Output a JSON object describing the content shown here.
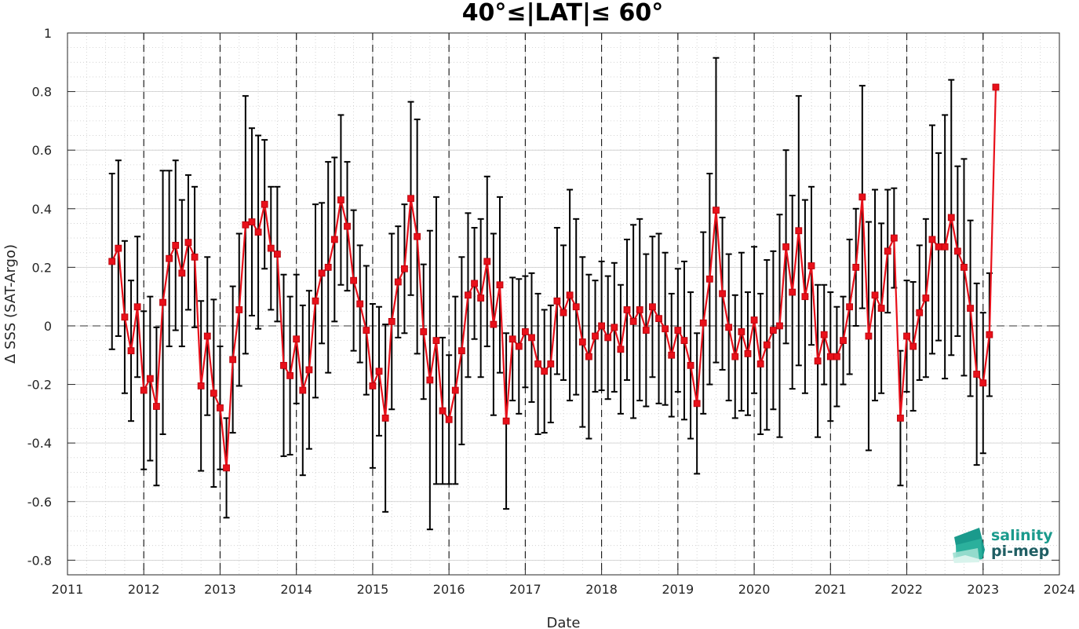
{
  "chart_data": {
    "type": "line",
    "title": "40°≤|LAT|≤ 60°",
    "xlabel": "Date",
    "ylabel": "Δ SSS (SAT-Argo)",
    "xlim": [
      2011,
      2024
    ],
    "ylim": [
      -0.85,
      1.0
    ],
    "x_ticks": [
      "2011",
      "2012",
      "2013",
      "2014",
      "2015",
      "2016",
      "2017",
      "2018",
      "2019",
      "2020",
      "2021",
      "2022",
      "2023",
      "2024"
    ],
    "y_ticks": [
      "1",
      "0.8",
      "0.6",
      "0.4",
      "0.2",
      "0",
      "-0.2",
      "-0.4",
      "-0.6",
      "-0.8"
    ],
    "grid": true,
    "minor_grid": true,
    "reference_line_y": 0,
    "year_separators": true,
    "colors": {
      "series": "#e8101a",
      "errorbar": "#000000",
      "grid": "#cccccc",
      "logo_top": "#1a9a8c",
      "logo_bottom": "#1f5e63"
    },
    "series": [
      {
        "x": [
          "2011-08",
          "2011-09",
          "2011-10",
          "2011-11",
          "2011-12",
          "2012-01",
          "2012-02",
          "2012-03",
          "2012-04",
          "2012-05",
          "2012-06",
          "2012-07",
          "2012-08",
          "2012-09",
          "2012-10",
          "2012-11",
          "2012-12",
          "2013-01",
          "2013-02",
          "2013-03",
          "2013-04",
          "2013-05",
          "2013-06",
          "2013-07",
          "2013-08",
          "2013-09",
          "2013-10",
          "2013-11",
          "2013-12",
          "2014-01",
          "2014-02",
          "2014-03",
          "2014-04",
          "2014-05",
          "2014-06",
          "2014-07",
          "2014-08",
          "2014-09",
          "2014-10",
          "2014-11",
          "2014-12",
          "2015-01",
          "2015-02",
          "2015-03",
          "2015-04",
          "2015-05",
          "2015-06",
          "2015-07",
          "2015-08",
          "2015-09",
          "2015-10",
          "2015-11",
          "2015-12",
          "2016-01",
          "2016-02",
          "2016-03",
          "2016-04",
          "2016-05",
          "2016-06",
          "2016-07",
          "2016-08",
          "2016-09",
          "2016-10",
          "2016-11",
          "2016-12",
          "2017-01",
          "2017-02",
          "2017-03",
          "2017-04",
          "2017-05",
          "2017-06",
          "2017-07",
          "2017-08",
          "2017-09",
          "2017-10",
          "2017-11",
          "2017-12",
          "2018-01",
          "2018-02",
          "2018-03",
          "2018-04",
          "2018-05",
          "2018-06",
          "2018-07",
          "2018-08",
          "2018-09",
          "2018-10",
          "2018-11",
          "2018-12",
          "2019-01",
          "2019-02",
          "2019-03",
          "2019-04",
          "2019-05",
          "2019-06",
          "2019-07",
          "2019-08",
          "2019-09",
          "2019-10",
          "2019-11",
          "2019-12",
          "2020-01",
          "2020-02",
          "2020-03",
          "2020-04",
          "2020-05",
          "2020-06",
          "2020-07",
          "2020-08",
          "2020-09",
          "2020-10",
          "2020-11",
          "2020-12",
          "2021-01",
          "2021-02",
          "2021-03",
          "2021-04",
          "2021-05",
          "2021-06",
          "2021-07",
          "2021-08",
          "2021-09",
          "2021-10",
          "2021-11",
          "2021-12",
          "2022-01",
          "2022-02",
          "2022-03",
          "2022-04",
          "2022-05",
          "2022-06",
          "2022-07",
          "2022-08",
          "2022-09",
          "2022-10",
          "2022-11",
          "2022-12",
          "2023-01",
          "2023-02",
          "2023-03"
        ],
        "values": [
          0.22,
          0.265,
          0.03,
          -0.085,
          0.065,
          -0.22,
          -0.18,
          -0.275,
          0.08,
          0.23,
          0.275,
          0.18,
          0.285,
          0.235,
          -0.205,
          -0.035,
          -0.23,
          -0.28,
          -0.485,
          -0.115,
          0.055,
          0.345,
          0.355,
          0.32,
          0.415,
          0.265,
          0.245,
          -0.135,
          -0.17,
          -0.045,
          -0.22,
          -0.15,
          0.085,
          0.18,
          0.2,
          0.295,
          0.43,
          0.34,
          0.155,
          0.075,
          -0.015,
          -0.205,
          -0.155,
          -0.315,
          0.015,
          0.15,
          0.195,
          0.435,
          0.305,
          -0.02,
          -0.185,
          -0.05,
          -0.29,
          -0.32,
          -0.22,
          -0.085,
          0.105,
          0.145,
          0.095,
          0.22,
          0.005,
          0.14,
          -0.325,
          -0.045,
          -0.07,
          -0.02,
          -0.04,
          -0.13,
          -0.155,
          -0.13,
          0.085,
          0.045,
          0.105,
          0.065,
          -0.055,
          -0.105,
          -0.035,
          0.0,
          -0.04,
          -0.005,
          -0.08,
          0.055,
          0.015,
          0.055,
          -0.015,
          0.065,
          0.025,
          -0.01,
          -0.1,
          -0.015,
          -0.05,
          -0.135,
          -0.265,
          0.01,
          0.16,
          0.395,
          0.11,
          -0.005,
          -0.105,
          -0.02,
          -0.095,
          0.02,
          -0.13,
          -0.065,
          -0.015,
          0.0,
          0.27,
          0.115,
          0.325,
          0.1,
          0.205,
          -0.12,
          -0.03,
          -0.105,
          -0.105,
          -0.05,
          0.065,
          0.2,
          0.44,
          -0.035,
          0.105,
          0.06,
          0.255,
          0.3,
          -0.315,
          -0.035,
          -0.07,
          0.045,
          0.095,
          0.295,
          0.27,
          0.27,
          0.37,
          0.255,
          0.2,
          0.06,
          -0.165,
          -0.195,
          -0.03,
          0.815
        ],
        "errors": [
          0.3,
          0.3,
          0.26,
          0.24,
          0.24,
          0.27,
          0.28,
          0.27,
          0.45,
          0.3,
          0.29,
          0.25,
          0.23,
          0.24,
          0.29,
          0.27,
          0.32,
          0.21,
          0.17,
          0.25,
          0.26,
          0.44,
          0.32,
          0.33,
          0.22,
          0.21,
          0.23,
          0.31,
          0.27,
          0.22,
          0.29,
          0.27,
          0.33,
          0.24,
          0.36,
          0.28,
          0.29,
          0.22,
          0.24,
          0.2,
          0.22,
          0.28,
          0.22,
          0.32,
          0.3,
          0.19,
          0.22,
          0.33,
          0.4,
          0.23,
          0.51,
          0.49,
          0.25,
          0.22,
          0.32,
          0.32,
          0.28,
          0.19,
          0.27,
          0.29,
          0.31,
          0.3,
          0.3,
          0.21,
          0.23,
          0.19,
          0.22,
          0.24,
          0.21,
          0.2,
          0.25,
          0.23,
          0.36,
          0.3,
          0.29,
          0.28,
          0.19,
          0.22,
          0.21,
          0.22,
          0.22,
          0.24,
          0.33,
          0.31,
          0.26,
          0.24,
          0.29,
          0.26,
          0.21,
          0.21,
          0.27,
          0.25,
          0.24,
          0.31,
          0.36,
          0.52,
          0.26,
          0.25,
          0.21,
          0.27,
          0.21,
          0.25,
          0.24,
          0.29,
          0.27,
          0.38,
          0.33,
          0.33,
          0.46,
          0.33,
          0.27,
          0.26,
          0.17,
          0.22,
          0.17,
          0.15,
          0.23,
          0.2,
          0.38,
          0.39,
          0.36,
          0.29,
          0.21,
          0.17,
          0.23,
          0.19,
          0.22,
          0.23,
          0.27,
          0.39,
          0.32,
          0.45,
          0.47,
          0.29,
          0.37,
          0.3,
          0.31,
          0.24,
          0.21,
          0
        ]
      }
    ]
  },
  "logo": {
    "line1": "salinity",
    "line2": "pi-mep"
  }
}
